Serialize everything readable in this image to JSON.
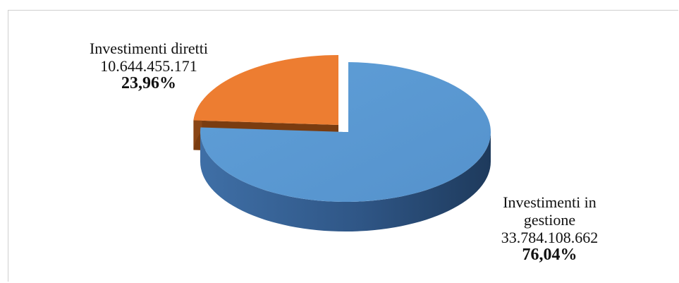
{
  "chart_data": {
    "type": "pie",
    "slices": [
      {
        "label": "Investimenti in gestione",
        "value": 33784108662,
        "value_text": "33.784.108.662",
        "percent_text": "76,04%",
        "percent": 76.04,
        "color": "#5b9bd5",
        "exploded": false
      },
      {
        "label": "Investimenti diretti",
        "value": 10644455171,
        "value_text": "10.644.455.171",
        "percent_text": "23,96%",
        "percent": 23.96,
        "color": "#ed7d31",
        "exploded": true
      }
    ]
  },
  "labels": {
    "orange": {
      "name": "Investimenti diretti",
      "value": "10.644.455.171",
      "pct": "23,96%"
    },
    "blue": {
      "name_line1": "Investimenti in",
      "name_line2": "gestione",
      "value": "33.784.108.662",
      "pct": "76,04%"
    }
  }
}
